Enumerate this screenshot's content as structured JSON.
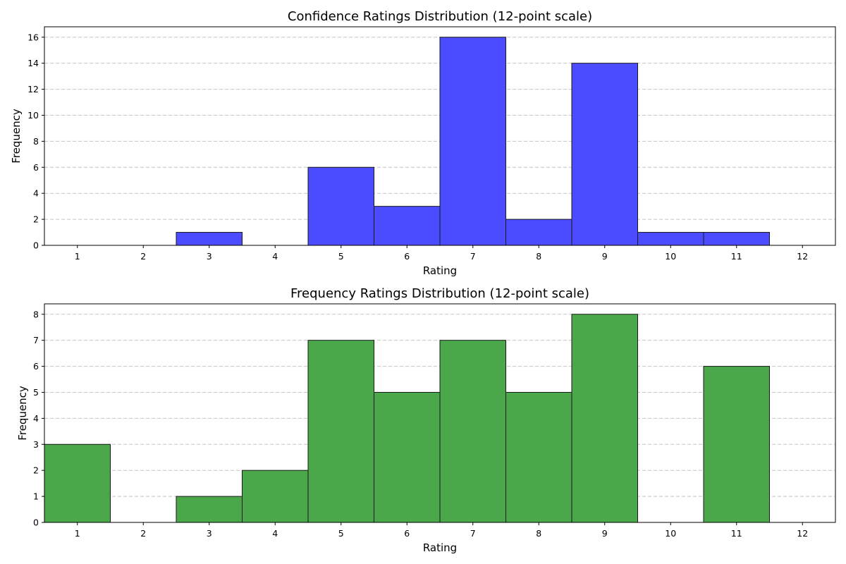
{
  "chart_data": [
    {
      "type": "bar",
      "title": "Confidence Ratings Distribution (12-point scale)",
      "xlabel": "Rating",
      "ylabel": "Frequency",
      "categories": [
        1,
        2,
        3,
        4,
        5,
        6,
        7,
        8,
        9,
        10,
        11,
        12
      ],
      "values": [
        0,
        0,
        1,
        0,
        6,
        3,
        16,
        2,
        14,
        1,
        1,
        0
      ],
      "xlim": [
        0.5,
        12.5
      ],
      "ylim": [
        0,
        16.8
      ],
      "yticks": [
        0,
        2,
        4,
        6,
        8,
        10,
        12,
        14,
        16
      ],
      "color": "#4b4bff",
      "grid": "y-dashed"
    },
    {
      "type": "bar",
      "title": "Frequency Ratings Distribution (12-point scale)",
      "xlabel": "Rating",
      "ylabel": "Frequency",
      "categories": [
        1,
        2,
        3,
        4,
        5,
        6,
        7,
        8,
        9,
        10,
        11,
        12
      ],
      "values": [
        3,
        0,
        1,
        2,
        7,
        5,
        7,
        5,
        8,
        0,
        6,
        0
      ],
      "xlim": [
        0.5,
        12.5
      ],
      "ylim": [
        0,
        8.4
      ],
      "yticks": [
        0,
        1,
        2,
        3,
        4,
        5,
        6,
        7,
        8
      ],
      "color": "#4aa74a",
      "grid": "y-dashed"
    }
  ]
}
